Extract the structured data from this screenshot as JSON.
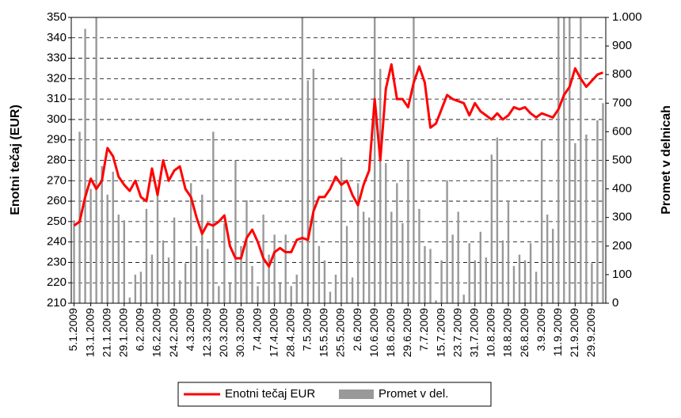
{
  "chart_data": {
    "type": "line",
    "y_label": "Enotni tečaj (EUR)",
    "y2_label": "Promet v delnicah",
    "categories": [
      "5.1.2009",
      null,
      null,
      "13.1.2009",
      null,
      null,
      "21.1.2009",
      null,
      null,
      "29.1.2009",
      null,
      null,
      "6.2.2009",
      null,
      null,
      "16.2.2009",
      null,
      null,
      "24.2.2009",
      null,
      null,
      "4.3.2009",
      null,
      null,
      "12.3.2009",
      null,
      null,
      "20.3.2009",
      null,
      null,
      "30.3.2009",
      null,
      null,
      "7.4.2009",
      null,
      null,
      "17.4.2009",
      null,
      null,
      "28.4.2009",
      null,
      null,
      "7.5.2009",
      null,
      null,
      "15.5.2009",
      null,
      null,
      "25.5.2009",
      null,
      null,
      "2.6.2009",
      null,
      null,
      "10.6.2009",
      null,
      null,
      "18.6.2009",
      null,
      null,
      "29.6.2009",
      null,
      null,
      "7.7.2009",
      null,
      null,
      "15.7.2009",
      null,
      null,
      "23.7.2009",
      null,
      null,
      "31.7.2009",
      null,
      null,
      "10.8.2009",
      null,
      null,
      "18.8.2009",
      null,
      null,
      "26.8.2009",
      null,
      null,
      "3.9.2009",
      null,
      null,
      "11.9.2009",
      null,
      null,
      "21.9.2009",
      null,
      null,
      "29.9.2009",
      null,
      null
    ],
    "series": [
      {
        "name": "Enotni tečaj EUR",
        "color": "#ff0000",
        "type": "line",
        "values": [
          248,
          250,
          262,
          271,
          266,
          270,
          286,
          282,
          272,
          268,
          265,
          270,
          262,
          260,
          276,
          263,
          280,
          270,
          275,
          277,
          266,
          262,
          252,
          244,
          249,
          248,
          250,
          253,
          238,
          232,
          232,
          242,
          246,
          240,
          232,
          228,
          235,
          237,
          235,
          235,
          241,
          242,
          241,
          255,
          262,
          262,
          266,
          272,
          268,
          270,
          263,
          258,
          268,
          275,
          310,
          280,
          315,
          327,
          310,
          310,
          306,
          318,
          326,
          318,
          296,
          298,
          305,
          312,
          310,
          309,
          308,
          302,
          308,
          304,
          302,
          300,
          303,
          300,
          302,
          306,
          305,
          306,
          303,
          301,
          303,
          302,
          301,
          305,
          312,
          316,
          325,
          320,
          316,
          319,
          322,
          323
        ]
      },
      {
        "name": "Promet v del.",
        "color": "#999999",
        "type": "bar",
        "axis": "y2",
        "values": [
          290,
          600,
          960,
          400,
          1000,
          480,
          380,
          460,
          310,
          290,
          20,
          100,
          110,
          330,
          170,
          380,
          220,
          160,
          300,
          80,
          140,
          420,
          200,
          380,
          190,
          600,
          60,
          280,
          70,
          500,
          200,
          360,
          130,
          60,
          310,
          170,
          240,
          70,
          240,
          60,
          100,
          1000,
          780,
          820,
          200,
          150,
          40,
          100,
          510,
          270,
          90,
          420,
          320,
          300,
          1000,
          820,
          490,
          320,
          420,
          280,
          500,
          1000,
          330,
          200,
          190,
          10,
          150,
          430,
          240,
          320,
          30,
          210,
          150,
          250,
          160,
          520,
          580,
          220,
          360,
          130,
          170,
          150,
          210,
          110,
          570,
          310,
          260,
          1000,
          1000,
          1000,
          560,
          1000,
          590,
          140,
          640,
          700
        ]
      }
    ],
    "ylim": [
      210,
      350
    ],
    "yticks": [
      210,
      220,
      230,
      240,
      250,
      260,
      270,
      280,
      290,
      300,
      310,
      320,
      330,
      340,
      350
    ],
    "y2lim": [
      0,
      1000
    ],
    "y2ticks": [
      0,
      100,
      200,
      300,
      400,
      500,
      600,
      700,
      800,
      900,
      {
        "value": 1000,
        "label": "1.000"
      }
    ],
    "grid": true,
    "legend": "bottom"
  }
}
